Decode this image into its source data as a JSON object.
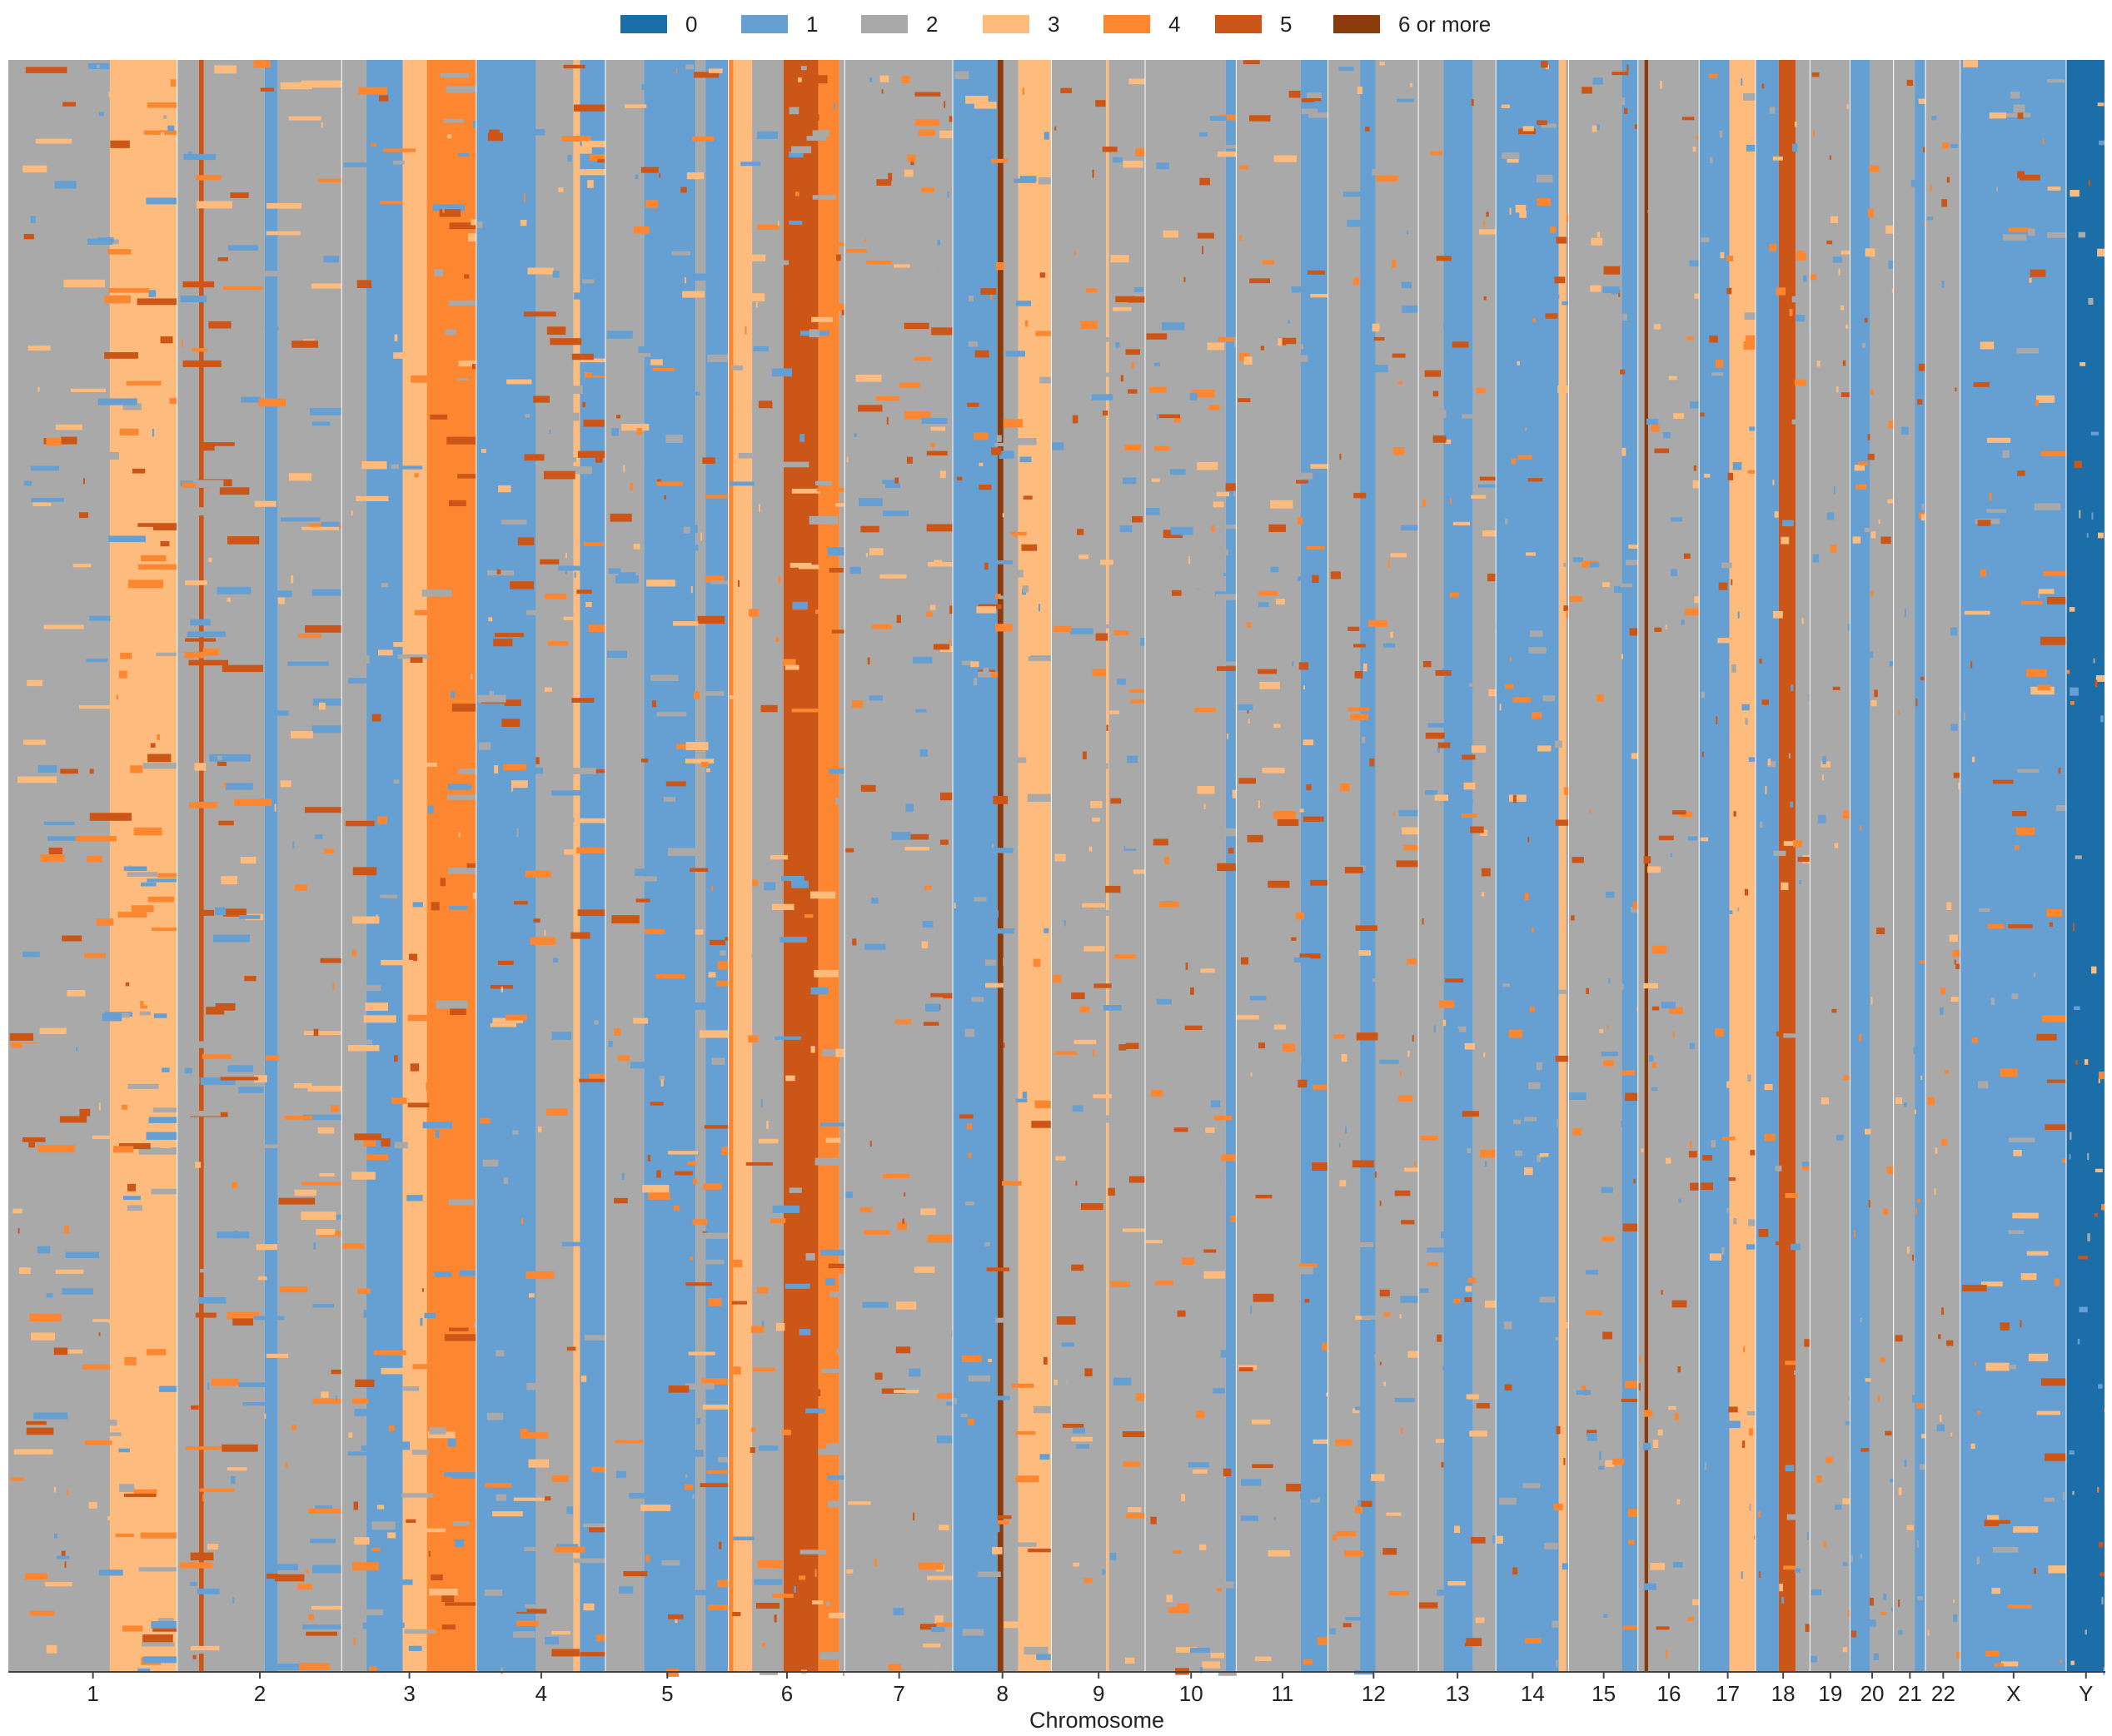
{
  "chart_data": {
    "type": "heatmap",
    "title": "",
    "xlabel": "Chromosome",
    "ylabel": "",
    "legend_position": "top-center",
    "legend": [
      {
        "label": "0",
        "color": "#1b6ea8"
      },
      {
        "label": "1",
        "color": "#669fd2"
      },
      {
        "label": "2",
        "color": "#a9a9a9"
      },
      {
        "label": "3",
        "color": "#fdbb7e"
      },
      {
        "label": "4",
        "color": "#fd8630"
      },
      {
        "label": "5",
        "color": "#cc5617"
      },
      {
        "label": "6 or more",
        "color": "#8b3a0c"
      }
    ],
    "chromosomes": [
      {
        "name": "1",
        "length_mb": 249,
        "bands": [
          [
            0.0,
            0.6,
            2
          ],
          [
            0.6,
            1.0,
            3
          ]
        ]
      },
      {
        "name": "2",
        "length_mb": 242,
        "bands": [
          [
            0.0,
            0.13,
            2
          ],
          [
            0.13,
            0.16,
            5
          ],
          [
            0.16,
            0.53,
            2
          ],
          [
            0.53,
            0.61,
            1
          ],
          [
            0.61,
            1.0,
            2
          ]
        ]
      },
      {
        "name": "3",
        "length_mb": 198,
        "bands": [
          [
            0.0,
            0.18,
            2
          ],
          [
            0.18,
            0.45,
            1
          ],
          [
            0.45,
            0.63,
            3
          ],
          [
            0.63,
            1.0,
            4
          ]
        ]
      },
      {
        "name": "4",
        "length_mb": 190,
        "bands": [
          [
            0.0,
            0.46,
            1
          ],
          [
            0.46,
            0.75,
            2
          ],
          [
            0.75,
            0.8,
            3
          ],
          [
            0.8,
            1.0,
            1
          ]
        ]
      },
      {
        "name": "5",
        "length_mb": 181,
        "bands": [
          [
            0.0,
            0.31,
            2
          ],
          [
            0.31,
            0.73,
            1
          ],
          [
            0.73,
            0.81,
            2
          ],
          [
            0.81,
            1.0,
            1
          ]
        ]
      },
      {
        "name": "6",
        "length_mb": 171,
        "bands": [
          [
            0.0,
            0.04,
            4
          ],
          [
            0.04,
            0.2,
            3
          ],
          [
            0.2,
            0.47,
            2
          ],
          [
            0.47,
            0.77,
            5
          ],
          [
            0.77,
            0.95,
            4
          ],
          [
            0.95,
            1.0,
            2
          ]
        ]
      },
      {
        "name": "7",
        "length_mb": 159,
        "bands": [
          [
            0.0,
            0.83,
            2
          ],
          [
            0.83,
            1.0,
            2
          ]
        ]
      },
      {
        "name": "8",
        "length_mb": 145,
        "bands": [
          [
            0.0,
            0.45,
            1
          ],
          [
            0.45,
            0.51,
            6
          ],
          [
            0.51,
            0.66,
            2
          ],
          [
            0.66,
            1.0,
            3
          ]
        ]
      },
      {
        "name": "9",
        "length_mb": 138,
        "bands": [
          [
            0.0,
            0.58,
            2
          ],
          [
            0.58,
            0.61,
            3
          ],
          [
            0.61,
            1.0,
            2
          ]
        ]
      },
      {
        "name": "10",
        "length_mb": 134,
        "bands": [
          [
            0.0,
            0.88,
            2
          ],
          [
            0.88,
            1.0,
            1
          ]
        ]
      },
      {
        "name": "11",
        "length_mb": 135,
        "bands": [
          [
            0.0,
            0.7,
            2
          ],
          [
            0.7,
            1.0,
            1
          ]
        ]
      },
      {
        "name": "12",
        "length_mb": 133,
        "bands": [
          [
            0.0,
            0.35,
            2
          ],
          [
            0.35,
            0.52,
            1
          ],
          [
            0.52,
            1.0,
            2
          ]
        ]
      },
      {
        "name": "13",
        "length_mb": 114,
        "bands": [
          [
            0.0,
            0.32,
            2
          ],
          [
            0.32,
            0.7,
            1
          ],
          [
            0.7,
            1.0,
            2
          ]
        ]
      },
      {
        "name": "14",
        "length_mb": 107,
        "bands": [
          [
            0.0,
            0.86,
            1
          ],
          [
            0.86,
            0.96,
            3
          ],
          [
            0.96,
            1.0,
            2
          ]
        ]
      },
      {
        "name": "15",
        "length_mb": 102,
        "bands": [
          [
            0.0,
            0.76,
            2
          ],
          [
            0.76,
            1.0,
            1
          ]
        ]
      },
      {
        "name": "16",
        "length_mb": 90,
        "bands": [
          [
            0.0,
            0.1,
            2
          ],
          [
            0.1,
            0.16,
            6
          ],
          [
            0.16,
            1.0,
            2
          ]
        ]
      },
      {
        "name": "17",
        "length_mb": 83,
        "bands": [
          [
            0.0,
            0.53,
            1
          ],
          [
            0.53,
            1.0,
            3
          ]
        ]
      },
      {
        "name": "18",
        "length_mb": 80,
        "bands": [
          [
            0.0,
            0.42,
            1
          ],
          [
            0.42,
            0.73,
            5
          ],
          [
            0.73,
            1.0,
            2
          ]
        ]
      },
      {
        "name": "19",
        "length_mb": 59,
        "bands": [
          [
            0.0,
            1.0,
            2
          ]
        ]
      },
      {
        "name": "20",
        "length_mb": 64,
        "bands": [
          [
            0.0,
            0.45,
            1
          ],
          [
            0.45,
            1.0,
            2
          ]
        ]
      },
      {
        "name": "21",
        "length_mb": 47,
        "bands": [
          [
            0.0,
            0.65,
            2
          ],
          [
            0.65,
            1.0,
            1
          ]
        ]
      },
      {
        "name": "22",
        "length_mb": 51,
        "bands": [
          [
            0.0,
            1.0,
            2
          ]
        ]
      },
      {
        "name": "X",
        "length_mb": 156,
        "bands": [
          [
            0.0,
            1.0,
            1
          ]
        ]
      },
      {
        "name": "Y",
        "length_mb": 57,
        "bands": [
          [
            0.0,
            1.0,
            0
          ]
        ]
      }
    ],
    "notes": "Rows are samples (top to bottom); columns span chromosomes proportional to length; cell color encodes copy number."
  }
}
